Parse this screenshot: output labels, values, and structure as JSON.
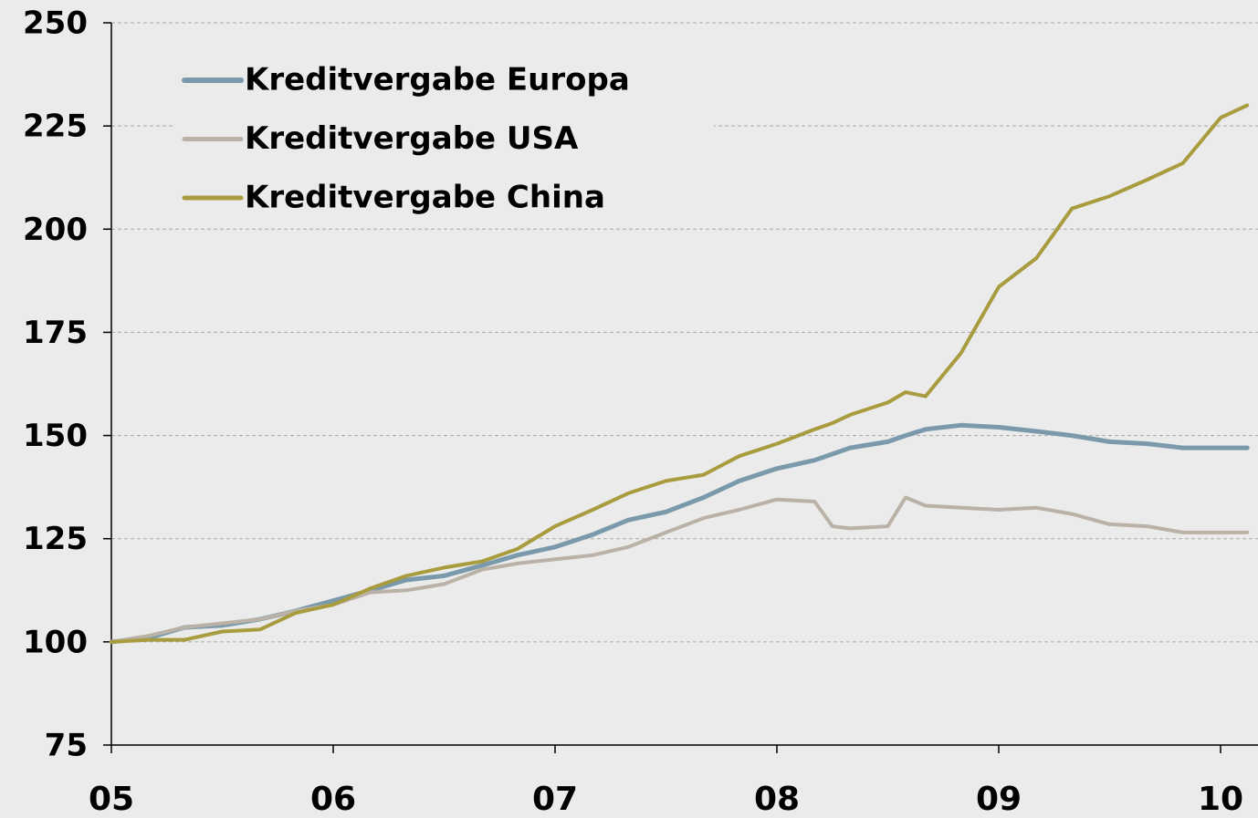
{
  "chart_data": {
    "type": "line",
    "x": [
      5,
      5.17,
      5.33,
      5.5,
      5.67,
      5.83,
      6,
      6.17,
      6.33,
      6.5,
      6.67,
      6.83,
      7,
      7.17,
      7.33,
      7.5,
      7.67,
      7.83,
      8,
      8.17,
      8.25,
      8.33,
      8.5,
      8.58,
      8.67,
      8.83,
      9,
      9.17,
      9.33,
      9.5,
      9.67,
      9.83,
      10,
      10.12
    ],
    "series": [
      {
        "name": "Kreditvergabe Europa",
        "color": "#7a9aab",
        "values": [
          100,
          101,
          103.5,
          104,
          105.5,
          107.5,
          110,
          112.5,
          115,
          116,
          118.5,
          121,
          123,
          126,
          129.5,
          131.5,
          135,
          139,
          142,
          144,
          145.5,
          147,
          148.5,
          150,
          151.5,
          152.5,
          152,
          151,
          150,
          148.5,
          148,
          147,
          147,
          147
        ]
      },
      {
        "name": "Kreditvergabe USA",
        "color": "#bab2a6",
        "values": [
          100,
          101.5,
          103.5,
          104.5,
          105.5,
          107.5,
          109,
          112,
          112.5,
          114,
          117.5,
          119,
          120,
          121,
          123,
          126.5,
          130,
          132,
          134.5,
          134,
          128,
          127.5,
          128,
          135,
          133,
          132.5,
          132,
          132.5,
          131,
          128.5,
          128,
          126.5,
          126.5,
          126.5
        ]
      },
      {
        "name": "Kreditvergabe China",
        "color": "#a89c3e",
        "values": [
          100,
          100.5,
          100.5,
          102.5,
          103,
          107,
          109,
          113,
          116,
          118,
          119.5,
          122.5,
          128,
          132,
          136,
          139,
          140.5,
          145,
          148,
          151.5,
          153,
          155,
          158,
          160.5,
          159.5,
          170,
          186,
          193,
          205,
          208,
          212,
          216,
          227,
          230
        ]
      }
    ],
    "xlim": [
      5,
      10.17
    ],
    "xticks": [
      {
        "value": 5,
        "label": "05"
      },
      {
        "value": 6,
        "label": "06"
      },
      {
        "value": 7,
        "label": "07"
      },
      {
        "value": 8,
        "label": "08"
      },
      {
        "value": 9,
        "label": "09"
      },
      {
        "value": 10,
        "label": "10"
      }
    ],
    "ylim": [
      75,
      250
    ],
    "yticks": [
      75,
      100,
      125,
      150,
      175,
      200,
      225,
      250
    ],
    "grid": true,
    "legend": "upper-left"
  }
}
